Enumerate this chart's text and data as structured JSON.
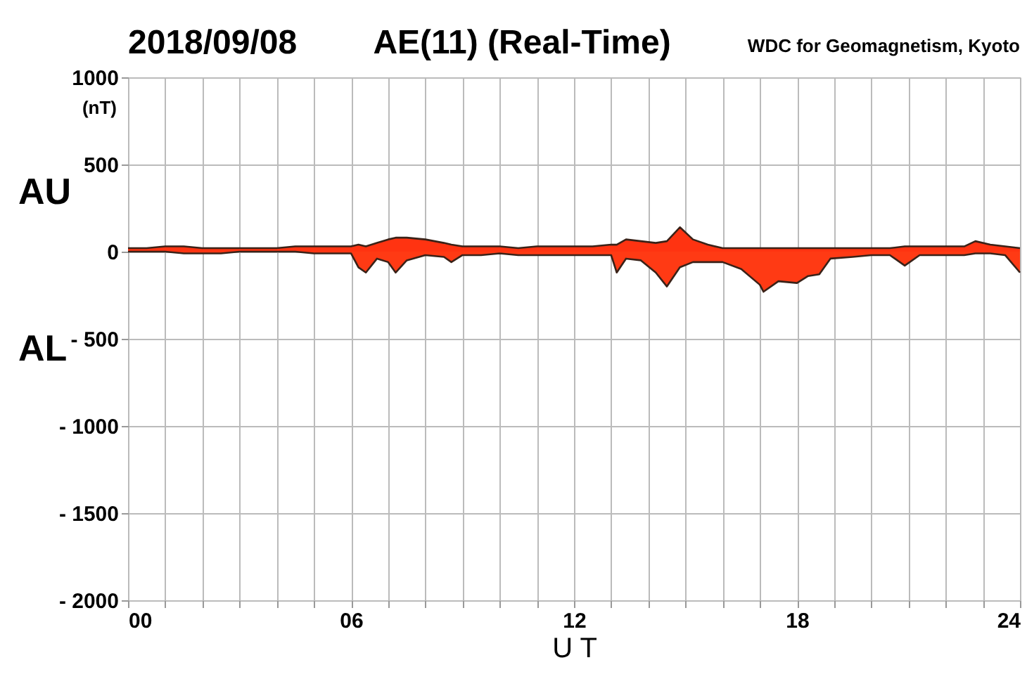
{
  "chart_data": {
    "type": "area",
    "title": "AE(11) (Real-Time)",
    "xlabel": "U T",
    "ylabel": "(nT)",
    "annotations": [
      "2018/09/08",
      "WDC for Geomagnetism, Kyoto"
    ],
    "x": [
      0,
      0.5,
      1,
      1.5,
      2,
      2.5,
      3,
      3.5,
      4,
      4.5,
      5,
      5.5,
      6,
      6.2,
      6.4,
      6.7,
      7,
      7.2,
      7.5,
      8,
      8.5,
      8.7,
      9,
      9.5,
      10,
      10.5,
      11,
      11.5,
      12,
      12.5,
      13,
      13.15,
      13.4,
      13.8,
      14.2,
      14.5,
      14.85,
      15.2,
      15.6,
      16,
      16.5,
      17,
      17.1,
      17.5,
      18,
      18.3,
      18.6,
      18.9,
      19.5,
      20,
      20.5,
      20.9,
      21.3,
      22,
      22.5,
      22.8,
      23.2,
      23.6,
      24
    ],
    "series": [
      {
        "name": "AU",
        "color": "#ff3311",
        "values": [
          20,
          20,
          30,
          30,
          20,
          20,
          20,
          20,
          20,
          30,
          30,
          30,
          30,
          40,
          30,
          50,
          70,
          80,
          80,
          70,
          50,
          40,
          30,
          30,
          30,
          20,
          30,
          30,
          30,
          30,
          40,
          40,
          70,
          60,
          50,
          60,
          140,
          70,
          40,
          20,
          20,
          20,
          20,
          20,
          20,
          20,
          20,
          20,
          20,
          20,
          20,
          30,
          30,
          30,
          30,
          60,
          40,
          30,
          20
        ]
      },
      {
        "name": "AL",
        "color": "#ff3a14",
        "values": [
          0,
          0,
          0,
          -10,
          -10,
          -10,
          0,
          0,
          0,
          0,
          -10,
          -10,
          -10,
          -90,
          -120,
          -40,
          -60,
          -120,
          -50,
          -20,
          -30,
          -60,
          -20,
          -20,
          -10,
          -20,
          -20,
          -20,
          -20,
          -20,
          -20,
          -120,
          -40,
          -50,
          -120,
          -200,
          -90,
          -60,
          -60,
          -60,
          -100,
          -190,
          -230,
          -170,
          -180,
          -140,
          -130,
          -40,
          -30,
          -20,
          -20,
          -80,
          -20,
          -20,
          -20,
          -10,
          -10,
          -20,
          -120
        ]
      }
    ],
    "xlim": [
      0,
      24
    ],
    "xticks": [
      {
        "value": 0,
        "label": "00"
      },
      {
        "value": 1,
        "label": null
      },
      {
        "value": 2,
        "label": null
      },
      {
        "value": 3,
        "label": null
      },
      {
        "value": 4,
        "label": null
      },
      {
        "value": 5,
        "label": null
      },
      {
        "value": 6,
        "label": "06"
      },
      {
        "value": 7,
        "label": null
      },
      {
        "value": 8,
        "label": null
      },
      {
        "value": 9,
        "label": null
      },
      {
        "value": 10,
        "label": null
      },
      {
        "value": 11,
        "label": null
      },
      12,
      {
        "value": 13,
        "label": null
      },
      {
        "value": 14,
        "label": null
      },
      {
        "value": 15,
        "label": null
      },
      {
        "value": 16,
        "label": null
      },
      {
        "value": 17,
        "label": null
      },
      18,
      {
        "value": 19,
        "label": null
      },
      {
        "value": 20,
        "label": null
      },
      {
        "value": 21,
        "label": null
      },
      {
        "value": 22,
        "label": null
      },
      {
        "value": 23,
        "label": null
      },
      24
    ],
    "ylim": [
      -2000,
      1000
    ],
    "yticks": [
      1000,
      500,
      0,
      {
        "value": -500,
        "label": "- 500"
      },
      {
        "value": -1000,
        "label": "- 1000"
      },
      {
        "value": -1500,
        "label": "- 1500"
      },
      {
        "value": -2000,
        "label": "- 2000"
      }
    ],
    "grid": true
  }
}
